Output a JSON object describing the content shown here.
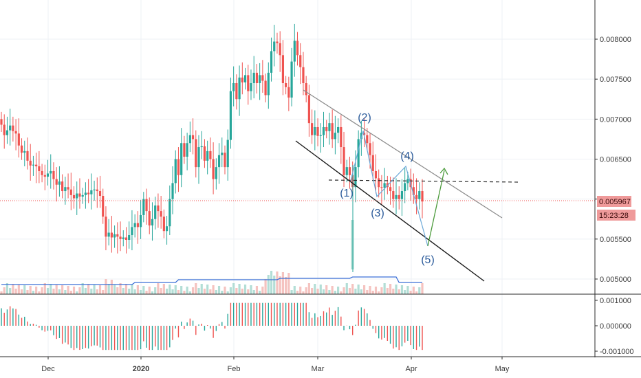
{
  "chart_data": [
    {
      "type": "candlestick",
      "title": "",
      "x_ticks": [
        "Dec",
        "2020",
        "Feb",
        "Mar",
        "Apr",
        "May"
      ],
      "y_ticks": [
        "0.008000",
        "0.007500",
        "0.007000",
        "0.006500",
        "0.006000",
        "0.005500",
        "0.005000"
      ],
      "ylim": [
        0.00484,
        0.00848
      ],
      "current_price": "0.005967",
      "countdown": "15:23:28",
      "wave_labels": [
        "(1)",
        "(2)",
        "(3)",
        "(4)",
        "(5)"
      ],
      "colors": {
        "up": "#26a69a",
        "down": "#ef5350",
        "price_line": "#ef5350",
        "badge": "#ef9a9a"
      },
      "candles_close": [
        0.00693,
        0.0068,
        0.00686,
        0.00692,
        0.00685,
        0.00682,
        0.00667,
        0.00658,
        0.0066,
        0.00648,
        0.00642,
        0.00643,
        0.00641,
        0.00635,
        0.0063,
        0.00628,
        0.00632,
        0.00635,
        0.00625,
        0.00618,
        0.00622,
        0.0061,
        0.00615,
        0.00612,
        0.00605,
        0.00601,
        0.00607,
        0.00603,
        0.00605,
        0.00608,
        0.00606,
        0.00611,
        0.00612,
        0.0061,
        0.00604,
        0.00578,
        0.00553,
        0.00558,
        0.00552,
        0.00556,
        0.00553,
        0.0055,
        0.00552,
        0.00549,
        0.00555,
        0.00565,
        0.0057,
        0.00565,
        0.0058,
        0.006,
        0.00585,
        0.00567,
        0.00575,
        0.00592,
        0.00585,
        0.00578,
        0.0056,
        0.00566,
        0.006,
        0.0062,
        0.0065,
        0.0063,
        0.0067,
        0.00653,
        0.0067,
        0.0068,
        0.00675,
        0.0064,
        0.00665,
        0.00666,
        0.00648,
        0.0066,
        0.0065,
        0.00625,
        0.0064,
        0.00655,
        0.00658,
        0.0064,
        0.00674,
        0.00735,
        0.00745,
        0.00725,
        0.00752,
        0.00746,
        0.00755,
        0.00735,
        0.00745,
        0.00758,
        0.00745,
        0.00755,
        0.00748,
        0.0073,
        0.00758,
        0.00785,
        0.00797,
        0.00795,
        0.0078,
        0.00745,
        0.0074,
        0.00727,
        0.00772,
        0.00798,
        0.0078,
        0.00765,
        0.00745,
        0.0073,
        0.00695,
        0.0068,
        0.0069,
        0.00679,
        0.0068,
        0.0069,
        0.00685,
        0.00695,
        0.00675,
        0.00683,
        0.0069,
        0.00665,
        0.0063,
        0.0064,
        0.0063,
        0.00615,
        0.0064,
        0.00675,
        0.00683,
        0.0068,
        0.0067,
        0.00655,
        0.00635,
        0.00626,
        0.00615,
        0.00614,
        0.0062,
        0.00615,
        0.0061,
        0.006,
        0.00605,
        0.006,
        0.0061,
        0.0062,
        0.00625,
        0.00615,
        0.00605,
        0.006,
        0.0061,
        0.00597
      ],
      "volume_ma": "#3b6fd6",
      "oscillator": {
        "yticks": [
          "0.001000",
          "0.000000",
          "-0.001000"
        ],
        "ylim": [
          -0.0012,
          0.0012
        ]
      }
    }
  ]
}
